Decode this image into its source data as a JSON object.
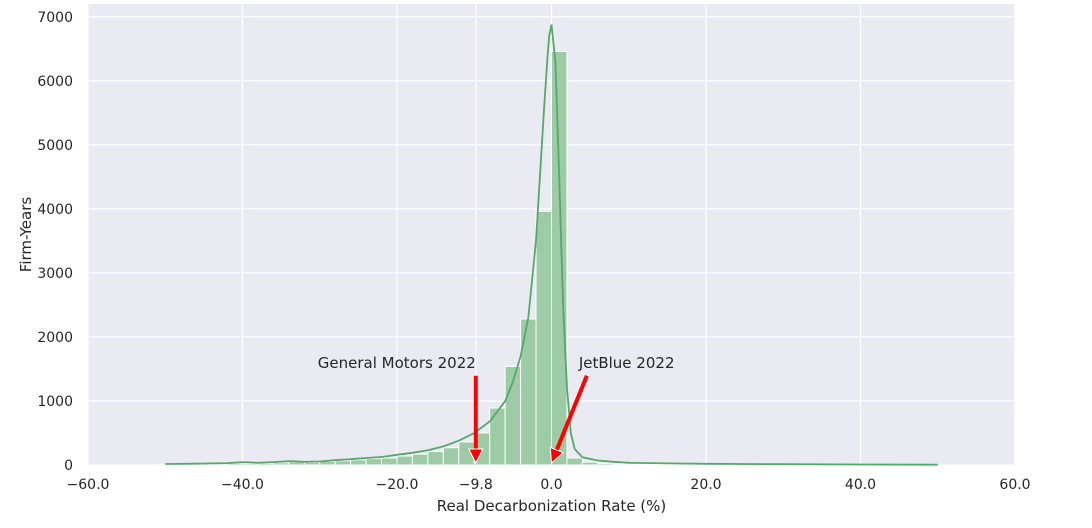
{
  "chart_data": {
    "type": "bar",
    "subtype": "histogram-with-kde",
    "title": "",
    "xlabel": "Real Decarbonization Rate (%)",
    "ylabel": "Firm-Years",
    "xlim": [
      -60,
      60
    ],
    "ylim": [
      0,
      7200
    ],
    "grid": true,
    "background_color": "#eaeaf2",
    "bar_color": "#9dcba6",
    "bar_edge_color": "#ffffff",
    "kde_color": "#55a868",
    "annotation_arrow_color": "#ff0000",
    "x_ticks": [
      -60,
      -40,
      -20,
      -9.8,
      0,
      20,
      40,
      60
    ],
    "x_tick_labels": [
      "−60.0",
      "−40.0",
      "−20.0",
      "−9.8",
      "0.0",
      "20.0",
      "40.0",
      "60.0"
    ],
    "y_ticks": [
      0,
      1000,
      2000,
      3000,
      4000,
      5000,
      6000,
      7000
    ],
    "y_tick_labels": [
      "0",
      "1000",
      "2000",
      "3000",
      "4000",
      "5000",
      "6000",
      "7000"
    ],
    "bin_width": 2,
    "bins": [
      {
        "x0": -50,
        "x1": -48,
        "count": 10
      },
      {
        "x0": -48,
        "x1": -46,
        "count": 12
      },
      {
        "x0": -46,
        "x1": -44,
        "count": 15
      },
      {
        "x0": -44,
        "x1": -42,
        "count": 18
      },
      {
        "x0": -42,
        "x1": -40,
        "count": 28
      },
      {
        "x0": -40,
        "x1": -38,
        "count": 22
      },
      {
        "x0": -38,
        "x1": -36,
        "count": 25
      },
      {
        "x0": -36,
        "x1": -34,
        "count": 35
      },
      {
        "x0": -34,
        "x1": -32,
        "count": 45
      },
      {
        "x0": -32,
        "x1": -30,
        "count": 40
      },
      {
        "x0": -30,
        "x1": -28,
        "count": 55
      },
      {
        "x0": -28,
        "x1": -26,
        "count": 65
      },
      {
        "x0": -26,
        "x1": -24,
        "count": 80
      },
      {
        "x0": -24,
        "x1": -22,
        "count": 100
      },
      {
        "x0": -22,
        "x1": -20,
        "count": 110
      },
      {
        "x0": -20,
        "x1": -18,
        "count": 140
      },
      {
        "x0": -18,
        "x1": -16,
        "count": 170
      },
      {
        "x0": -16,
        "x1": -14,
        "count": 210
      },
      {
        "x0": -14,
        "x1": -12,
        "count": 270
      },
      {
        "x0": -12,
        "x1": -10,
        "count": 360
      },
      {
        "x0": -10,
        "x1": -8,
        "count": 500
      },
      {
        "x0": -8,
        "x1": -6,
        "count": 890
      },
      {
        "x0": -6,
        "x1": -4,
        "count": 1540
      },
      {
        "x0": -4,
        "x1": -2,
        "count": 2280
      },
      {
        "x0": -2,
        "x1": 0,
        "count": 3960
      },
      {
        "x0": 0,
        "x1": 2,
        "count": 6460
      },
      {
        "x0": 2,
        "x1": 4,
        "count": 110
      },
      {
        "x0": 4,
        "x1": 6,
        "count": 45
      },
      {
        "x0": 6,
        "x1": 8,
        "count": 25
      },
      {
        "x0": 8,
        "x1": 10,
        "count": 18
      },
      {
        "x0": 10,
        "x1": 12,
        "count": 12
      },
      {
        "x0": 12,
        "x1": 14,
        "count": 10
      },
      {
        "x0": 14,
        "x1": 16,
        "count": 8
      },
      {
        "x0": 16,
        "x1": 18,
        "count": 7
      },
      {
        "x0": 18,
        "x1": 20,
        "count": 6
      },
      {
        "x0": 20,
        "x1": 22,
        "count": 6
      },
      {
        "x0": 22,
        "x1": 24,
        "count": 5
      },
      {
        "x0": 24,
        "x1": 26,
        "count": 5
      },
      {
        "x0": 26,
        "x1": 28,
        "count": 5
      },
      {
        "x0": 28,
        "x1": 30,
        "count": 5
      },
      {
        "x0": 30,
        "x1": 32,
        "count": 4
      },
      {
        "x0": 32,
        "x1": 34,
        "count": 4
      },
      {
        "x0": 34,
        "x1": 36,
        "count": 4
      },
      {
        "x0": 36,
        "x1": 38,
        "count": 4
      },
      {
        "x0": 38,
        "x1": 40,
        "count": 4
      },
      {
        "x0": 40,
        "x1": 42,
        "count": 3
      },
      {
        "x0": 42,
        "x1": 44,
        "count": 3
      },
      {
        "x0": 44,
        "x1": 46,
        "count": 3
      },
      {
        "x0": 46,
        "x1": 48,
        "count": 3
      },
      {
        "x0": 48,
        "x1": 50,
        "count": 3
      }
    ],
    "kde": {
      "x": [
        -50,
        -46,
        -42,
        -40,
        -38,
        -36,
        -34,
        -32,
        -30,
        -28,
        -26,
        -24,
        -22,
        -20,
        -18,
        -16,
        -14,
        -12,
        -10,
        -8,
        -6,
        -5,
        -4,
        -3,
        -2,
        -1.5,
        -1,
        -0.5,
        -0.3,
        0,
        0.5,
        1,
        1.5,
        2,
        2.5,
        3,
        4,
        6,
        8,
        10,
        15,
        20,
        30,
        40,
        50
      ],
      "y": [
        15,
        20,
        30,
        45,
        35,
        45,
        60,
        50,
        55,
        75,
        90,
        110,
        125,
        160,
        190,
        230,
        290,
        380,
        500,
        680,
        1000,
        1300,
        1700,
        2300,
        3500,
        4500,
        5500,
        6400,
        6700,
        6880,
        6300,
        4500,
        2500,
        1200,
        500,
        250,
        120,
        70,
        50,
        35,
        25,
        18,
        12,
        8,
        5
      ]
    },
    "annotations": [
      {
        "text": "General Motors 2022",
        "x": -9.8,
        "y": 0,
        "text_x": -9.8,
        "text_y": 1300
      },
      {
        "text": "JetBlue 2022",
        "x": 0,
        "y": 0,
        "text_x": 2.5,
        "text_y": 1300
      }
    ]
  }
}
